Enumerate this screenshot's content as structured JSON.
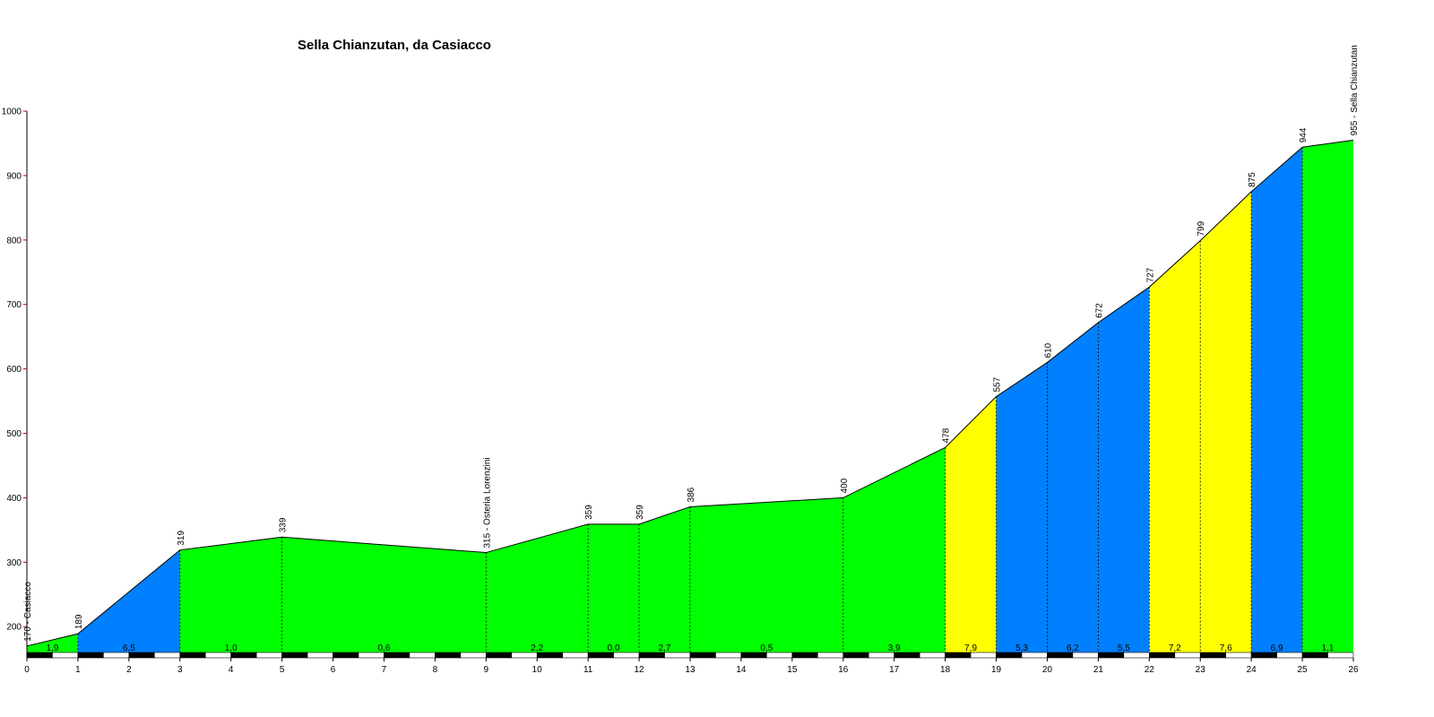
{
  "chart_data": {
    "type": "area",
    "title": "Sella Chianzutan, da Casiacco",
    "xlabel": "",
    "ylabel": "",
    "xlim": [
      0,
      26
    ],
    "ylim": [
      160,
      1000
    ],
    "x_ticks": [
      "0",
      "1",
      "2",
      "3",
      "4",
      "5",
      "6",
      "7",
      "8",
      "9",
      "10",
      "11",
      "12",
      "13",
      "14",
      "15",
      "16",
      "17",
      "18",
      "19",
      "20",
      "21",
      "22",
      "23",
      "24",
      "25",
      "26"
    ],
    "y_ticks": [
      "200",
      "300",
      "400",
      "500",
      "600",
      "700",
      "800",
      "900",
      "1000"
    ],
    "profile": [
      {
        "x": 0,
        "y": 170,
        "label": "170 - Casiacco"
      },
      {
        "x": 1,
        "y": 189,
        "label": "189"
      },
      {
        "x": 3,
        "y": 319,
        "label": "319"
      },
      {
        "x": 5,
        "y": 339,
        "label": "339"
      },
      {
        "x": 9,
        "y": 315,
        "label": "315 - Osteria Lorenzini"
      },
      {
        "x": 11,
        "y": 359,
        "label": "359"
      },
      {
        "x": 12,
        "y": 359,
        "label": "359"
      },
      {
        "x": 13,
        "y": 386,
        "label": "386"
      },
      {
        "x": 16,
        "y": 400,
        "label": "400"
      },
      {
        "x": 18,
        "y": 478,
        "label": "478"
      },
      {
        "x": 19,
        "y": 557,
        "label": "557"
      },
      {
        "x": 20,
        "y": 610,
        "label": "610"
      },
      {
        "x": 21,
        "y": 672,
        "label": "672"
      },
      {
        "x": 22,
        "y": 727,
        "label": "727"
      },
      {
        "x": 23,
        "y": 799,
        "label": "799"
      },
      {
        "x": 24,
        "y": 875,
        "label": "875"
      },
      {
        "x": 25,
        "y": 944,
        "label": "944"
      },
      {
        "x": 26,
        "y": 955,
        "label": "955 - Sella Chianzutan"
      }
    ],
    "segments": [
      {
        "from": 0,
        "to": 1,
        "gradient": "1,9",
        "color": "#00ff00"
      },
      {
        "from": 1,
        "to": 3,
        "gradient": "6,5",
        "color": "#0080ff"
      },
      {
        "from": 3,
        "to": 5,
        "gradient": "1,0",
        "color": "#00ff00"
      },
      {
        "from": 5,
        "to": 9,
        "gradient": "0,6",
        "color": "#00ff00"
      },
      {
        "from": 9,
        "to": 11,
        "gradient": "2,2",
        "color": "#00ff00"
      },
      {
        "from": 11,
        "to": 12,
        "gradient": "0,0",
        "color": "#00ff00"
      },
      {
        "from": 12,
        "to": 13,
        "gradient": "2,7",
        "color": "#00ff00"
      },
      {
        "from": 13,
        "to": 16,
        "gradient": "0,5",
        "color": "#00ff00"
      },
      {
        "from": 16,
        "to": 18,
        "gradient": "3,9",
        "color": "#00ff00"
      },
      {
        "from": 18,
        "to": 19,
        "gradient": "7,9",
        "color": "#ffff00"
      },
      {
        "from": 19,
        "to": 20,
        "gradient": "5,3",
        "color": "#0080ff"
      },
      {
        "from": 20,
        "to": 21,
        "gradient": "6,2",
        "color": "#0080ff"
      },
      {
        "from": 21,
        "to": 22,
        "gradient": "5,5",
        "color": "#0080ff"
      },
      {
        "from": 22,
        "to": 23,
        "gradient": "7,2",
        "color": "#ffff00"
      },
      {
        "from": 23,
        "to": 24,
        "gradient": "7,6",
        "color": "#ffff00"
      },
      {
        "from": 24,
        "to": 25,
        "gradient": "6,9",
        "color": "#0080ff"
      },
      {
        "from": 25,
        "to": 26,
        "gradient": "1,1",
        "color": "#00ff00"
      }
    ],
    "grid": false,
    "legend": "none"
  }
}
